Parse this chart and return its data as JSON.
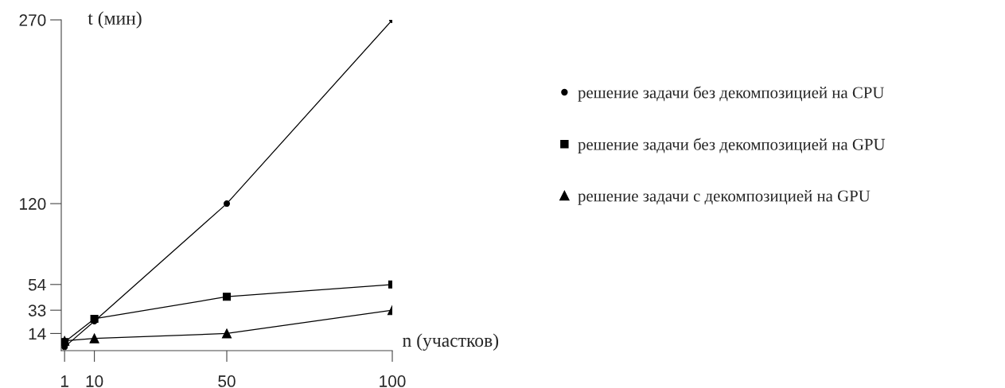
{
  "chart_data": {
    "type": "line",
    "xlabel": "n (участков)",
    "ylabel": "t (мин)",
    "x": [
      1,
      10,
      50,
      100
    ],
    "series": [
      {
        "name": "решение задачи без декомпозицией на CPU",
        "color": "#000000",
        "marker": "circle",
        "values": [
          3,
          24,
          120,
          270
        ]
      },
      {
        "name": "решение задачи без декомпозицией на GPU",
        "color": "#000000",
        "marker": "square",
        "values": [
          7,
          26,
          44,
          54
        ]
      },
      {
        "name": "решение задачи с декомпозицией на GPU",
        "color": "#000000",
        "marker": "triangle",
        "values": [
          8,
          10,
          14,
          33
        ]
      }
    ],
    "xlim": [
      0,
      100
    ],
    "xticks": [
      1,
      10,
      50,
      100
    ],
    "ylim": [
      0,
      270
    ],
    "yticks": [
      14,
      33,
      54,
      120,
      270
    ],
    "grid": false,
    "legend": "right",
    "line_style": "solid"
  }
}
